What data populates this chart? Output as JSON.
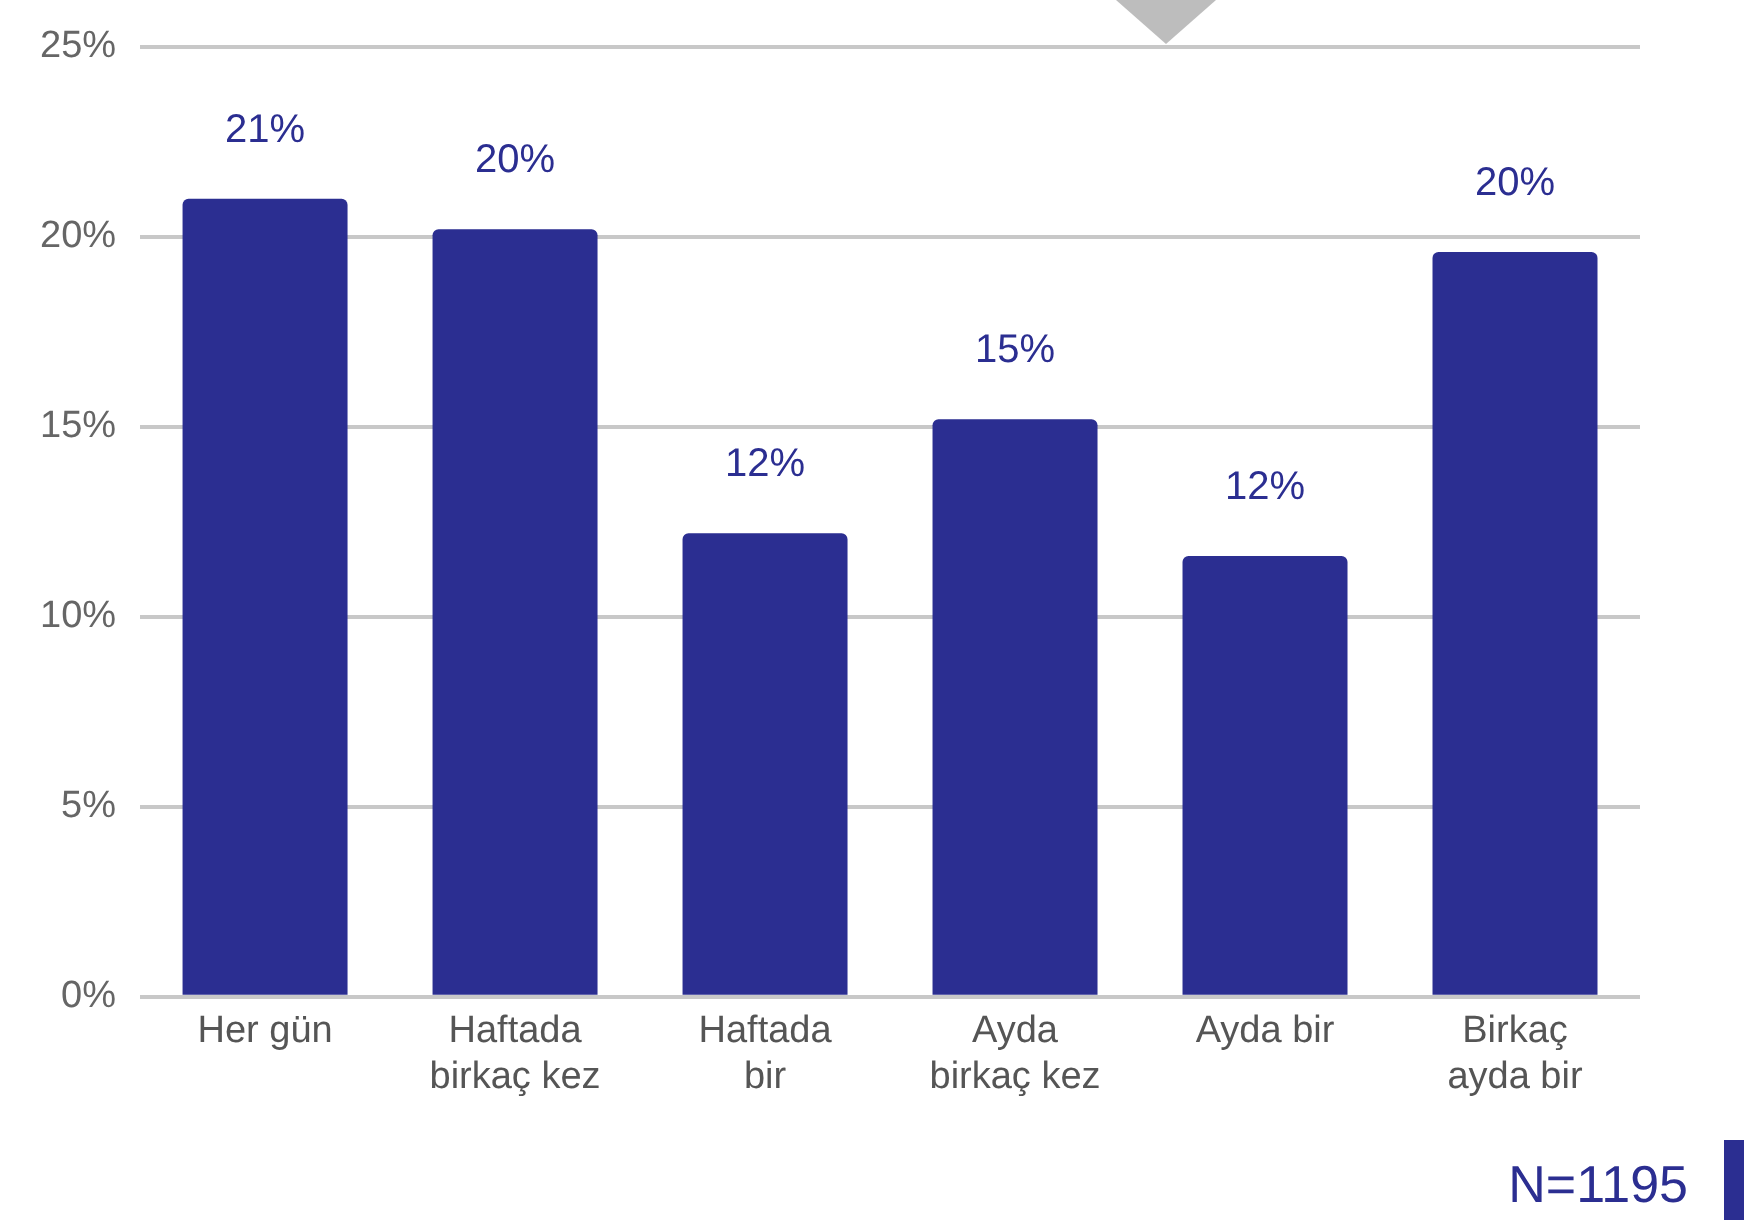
{
  "chart_data": {
    "type": "bar",
    "categories": [
      "Her gün",
      "Haftada\nbirkaç kez",
      "Haftada\nbir",
      "Ayda\nbirkaç kez",
      "Ayda bir",
      "Birkaç\nayda bir"
    ],
    "values": [
      21.0,
      20.2,
      12.2,
      15.2,
      11.6,
      19.6
    ],
    "value_labels": [
      "21%",
      "20%",
      "12%",
      "15%",
      "12%",
      "20%"
    ],
    "color": "#2b2e91",
    "ylim": [
      0,
      25
    ],
    "yticks": [
      {
        "value": 0,
        "label": "0%"
      },
      {
        "value": 5,
        "label": "5%"
      },
      {
        "value": 10,
        "label": "10%"
      },
      {
        "value": 15,
        "label": "15%"
      },
      {
        "value": 20,
        "label": "20%"
      },
      {
        "value": 25,
        "label": "25%"
      }
    ],
    "grid": "y",
    "legend": false,
    "annotations": [
      "N=1195"
    ]
  }
}
